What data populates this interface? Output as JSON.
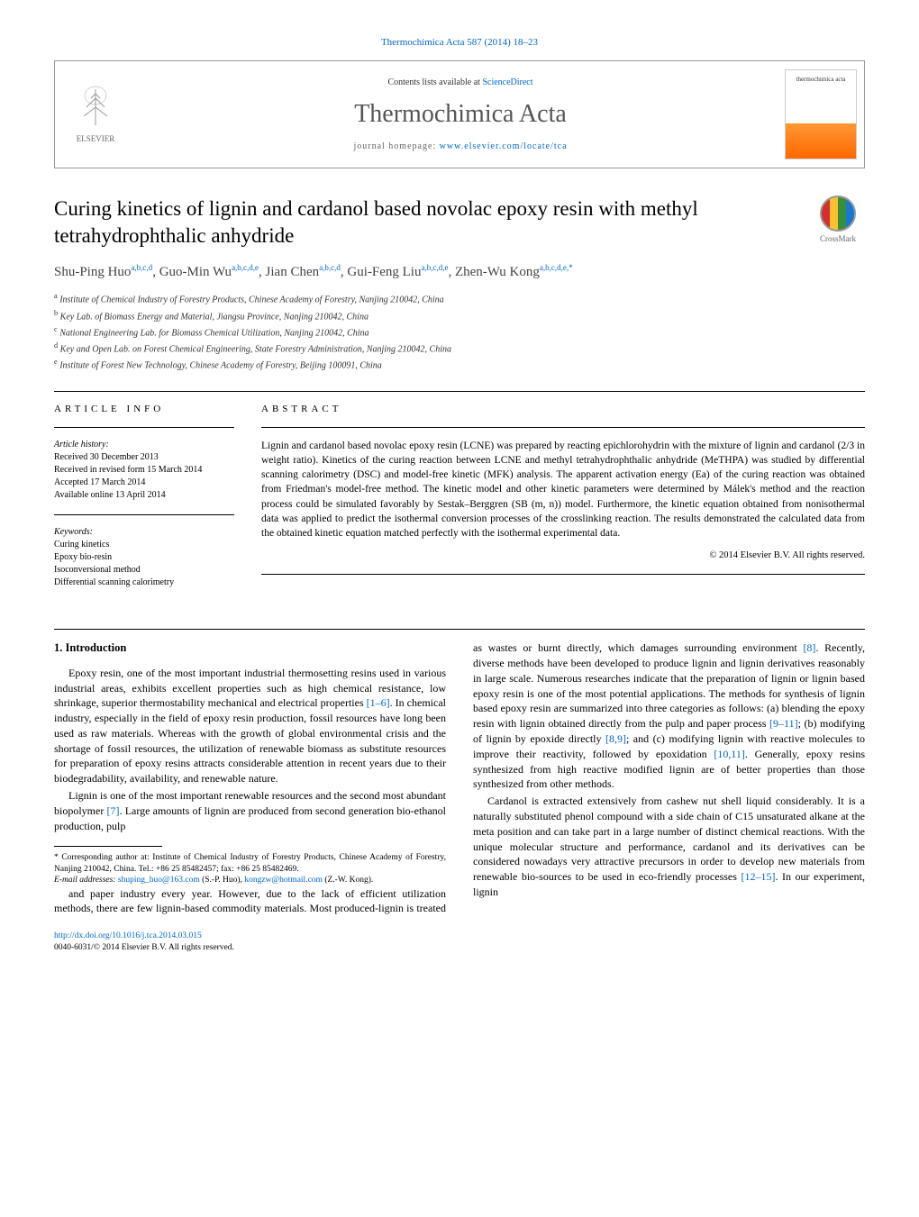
{
  "journal_ref": "Thermochimica Acta 587 (2014) 18–23",
  "header": {
    "contents_text": "Contents lists available at ",
    "contents_link": "ScienceDirect",
    "journal_name": "Thermochimica Acta",
    "homepage_prefix": "journal homepage: ",
    "homepage_url": "www.elsevier.com/locate/tca",
    "publisher": "ELSEVIER",
    "cover_text": "thermochimica acta"
  },
  "title": "Curing kinetics of lignin and cardanol based novolac epoxy resin with methyl tetrahydrophthalic anhydride",
  "crossmark_label": "CrossMark",
  "authors_html": "Shu-Ping Huo<sup>a,b,c,d</sup>, Guo-Min Wu<sup>a,b,c,d,e</sup>, Jian Chen<sup>a,b,c,d</sup>, Gui-Feng Liu<sup>a,b,c,d,e</sup>, Zhen-Wu Kong<sup>a,b,c,d,e,*</sup>",
  "affiliations": [
    {
      "sup": "a",
      "text": "Institute of Chemical Industry of Forestry Products, Chinese Academy of Forestry, Nanjing 210042, China"
    },
    {
      "sup": "b",
      "text": "Key Lab. of Biomass Energy and Material, Jiangsu Province, Nanjing 210042, China"
    },
    {
      "sup": "c",
      "text": "National Engineering Lab. for Biomass Chemical Utilization, Nanjing 210042, China"
    },
    {
      "sup": "d",
      "text": "Key and Open Lab. on Forest Chemical Engineering, State Forestry Administration, Nanjing 210042, China"
    },
    {
      "sup": "e",
      "text": "Institute of Forest New Technology, Chinese Academy of Forestry, Beijing 100091, China"
    }
  ],
  "article_info": {
    "heading": "ARTICLE INFO",
    "history_label": "Article history:",
    "history": [
      "Received 30 December 2013",
      "Received in revised form 15 March 2014",
      "Accepted 17 March 2014",
      "Available online 13 April 2014"
    ],
    "keywords_label": "Keywords:",
    "keywords": [
      "Curing kinetics",
      "Epoxy bio-resin",
      "Isoconversional method",
      "Differential scanning calorimetry"
    ]
  },
  "abstract": {
    "heading": "ABSTRACT",
    "text": "Lignin and cardanol based novolac epoxy resin (LCNE) was prepared by reacting epichlorohydrin with the mixture of lignin and cardanol (2/3 in weight ratio). Kinetics of the curing reaction between LCNE and methyl tetrahydrophthalic anhydride (MeTHPA) was studied by differential scanning calorimetry (DSC) and model-free kinetic (MFK) analysis. The apparent activation energy (Ea) of the curing reaction was obtained from Friedman's model-free method. The kinetic model and other kinetic parameters were determined by Málek's method and the reaction process could be simulated favorably by Sestak–Berggren (SB (m, n)) model. Furthermore, the kinetic equation obtained from nonisothermal data was applied to predict the isothermal conversion processes of the crosslinking reaction. The results demonstrated the calculated data from the obtained kinetic equation matched perfectly with the isothermal experimental data.",
    "copyright": "© 2014 Elsevier B.V. All rights reserved."
  },
  "body": {
    "section1_heading": "1. Introduction",
    "p1": "Epoxy resin, one of the most important industrial thermosetting resins used in various industrial areas, exhibits excellent properties such as high chemical resistance, low shrinkage, superior thermostability mechanical and electrical properties [1–6]. In chemical industry, especially in the field of epoxy resin production, fossil resources have long been used as raw materials. Whereas with the growth of global environmental crisis and the shortage of fossil resources, the utilization of renewable biomass as substitute resources for preparation of epoxy resins attracts considerable attention in recent years due to their biodegradability, availability, and renewable nature.",
    "p2": "Lignin is one of the most important renewable resources and the second most abundant biopolymer [7]. Large amounts of lignin are produced from second generation bio-ethanol production, pulp",
    "p3": "and paper industry every year. However, due to the lack of efficient utilization methods, there are few lignin-based commodity materials. Most produced-lignin is treated as wastes or burnt directly, which damages surrounding environment [8]. Recently, diverse methods have been developed to produce lignin and lignin derivatives reasonably in large scale. Numerous researches indicate that the preparation of lignin or lignin based epoxy resin is one of the most potential applications. The methods for synthesis of lignin based epoxy resin are summarized into three categories as follows: (a) blending the epoxy resin with lignin obtained directly from the pulp and paper process [9–11]; (b) modifying of lignin by epoxide directly [8,9]; and (c) modifying lignin with reactive molecules to improve their reactivity, followed by epoxidation [10,11]. Generally, epoxy resins synthesized from high reactive modified lignin are of better properties than those synthesized from other methods.",
    "p4": "Cardanol is extracted extensively from cashew nut shell liquid considerably. It is a naturally substituted phenol compound with a side chain of C15 unsaturated alkane at the meta position and can take part in a large number of distinct chemical reactions. With the unique molecular structure and performance, cardanol and its derivatives can be considered nowadays very attractive precursors in order to develop new materials from renewable bio-sources to be used in eco-friendly processes [12–15]. In our experiment, lignin"
  },
  "footnotes": {
    "corr_prefix": "* Corresponding author at: Institute of Chemical Industry of Forestry Products, Chinese Academy of Forestry, Nanjing 210042, China. Tel.: +86 25 85482457; fax: +86 25 85482469.",
    "email_label": "E-mail addresses: ",
    "email1": "shuping_huo@163.com",
    "email1_sfx": " (S.-P. Huo), ",
    "email2": "kongzw@hotmail.com",
    "email2_sfx": " (Z.-W. Kong)."
  },
  "footer": {
    "doi": "http://dx.doi.org/10.1016/j.tca.2014.03.015",
    "issn_line": "0040-6031/© 2014 Elsevier B.V. All rights reserved."
  },
  "colors": {
    "link": "#0066cc",
    "text": "#000000",
    "muted": "#666666"
  }
}
